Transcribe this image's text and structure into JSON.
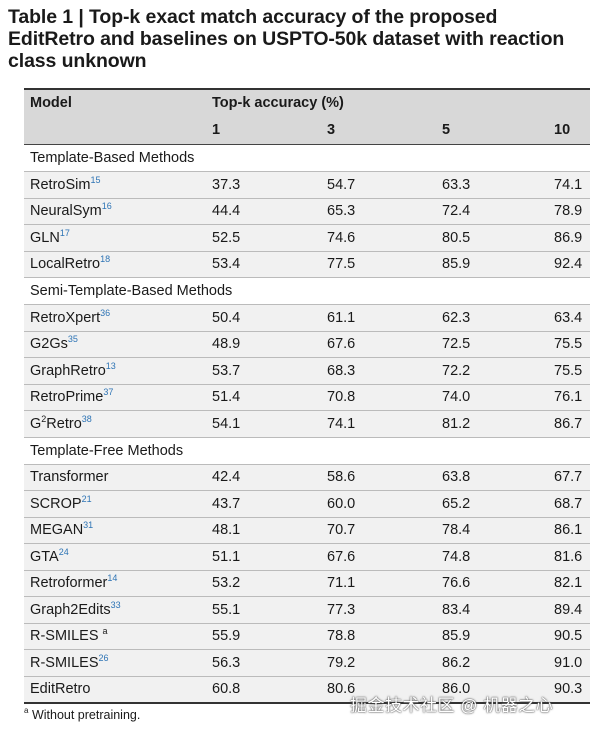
{
  "caption": "Table 1 | Top-k exact match accuracy of the proposed EditRetro and baselines on USPTO-50k dataset with reaction class unknown",
  "header": {
    "model": "Model",
    "group": "Top-k accuracy (%)",
    "k": [
      "1",
      "3",
      "5",
      "10"
    ]
  },
  "groups": [
    {
      "title": "Template-Based Methods",
      "rows": [
        {
          "name": "RetroSim",
          "ref": "15",
          "vals": [
            "37.3",
            "54.7",
            "63.3",
            "74.1"
          ]
        },
        {
          "name": "NeuralSym",
          "ref": "16",
          "vals": [
            "44.4",
            "65.3",
            "72.4",
            "78.9"
          ]
        },
        {
          "name": "GLN",
          "ref": "17",
          "vals": [
            "52.5",
            "74.6",
            "80.5",
            "86.9"
          ]
        },
        {
          "name": "LocalRetro",
          "ref": "18",
          "vals": [
            "53.4",
            "77.5",
            "85.9",
            "92.4"
          ]
        }
      ]
    },
    {
      "title": "Semi-Template-Based Methods",
      "rows": [
        {
          "name": "RetroXpert",
          "ref": "36",
          "vals": [
            "50.4",
            "61.1",
            "62.3",
            "63.4"
          ]
        },
        {
          "name": "G2Gs",
          "ref": "35",
          "vals": [
            "48.9",
            "67.6",
            "72.5",
            "75.5"
          ]
        },
        {
          "name": "GraphRetro",
          "ref": "13",
          "vals": [
            "53.7",
            "68.3",
            "72.2",
            "75.5"
          ]
        },
        {
          "name": "RetroPrime",
          "ref": "37",
          "vals": [
            "51.4",
            "70.8",
            "74.0",
            "76.1"
          ]
        },
        {
          "name_pre": "G",
          "name_sup": "2",
          "name": "Retro",
          "ref": "38",
          "vals": [
            "54.1",
            "74.1",
            "81.2",
            "86.7"
          ]
        }
      ]
    },
    {
      "title": "Template-Free Methods",
      "rows": [
        {
          "name": "Transformer",
          "ref": "",
          "vals": [
            "42.4",
            "58.6",
            "63.8",
            "67.7"
          ]
        },
        {
          "name": "SCROP",
          "ref": "21",
          "vals": [
            "43.7",
            "60.0",
            "65.2",
            "68.7"
          ]
        },
        {
          "name": "MEGAN",
          "ref": "31",
          "vals": [
            "48.1",
            "70.7",
            "78.4",
            "86.1"
          ]
        },
        {
          "name": "GTA",
          "ref": "24",
          "vals": [
            "51.1",
            "67.6",
            "74.8",
            "81.6"
          ]
        },
        {
          "name": "Retroformer",
          "ref": "14",
          "vals": [
            "53.2",
            "71.1",
            "76.6",
            "82.1"
          ]
        },
        {
          "name": "Graph2Edits",
          "ref": "33",
          "vals": [
            "55.1",
            "77.3",
            "83.4",
            "89.4"
          ]
        },
        {
          "name": "R-SMILES",
          "ref": "a",
          "ref_plain": true,
          "vals": [
            "55.9",
            "78.8",
            "85.9",
            "90.5"
          ]
        },
        {
          "name": "R-SMILES",
          "ref": "26",
          "vals": [
            "56.3",
            "79.2",
            "86.2",
            "91.0"
          ]
        },
        {
          "name": "EditRetro",
          "ref": "",
          "vals": [
            "60.8",
            "80.6",
            "86.0",
            "90.3"
          ]
        }
      ]
    }
  ],
  "footnote": {
    "mark": "a",
    "text": "Without pretraining."
  },
  "watermark": "掘金技术社区 @ 机器之心"
}
